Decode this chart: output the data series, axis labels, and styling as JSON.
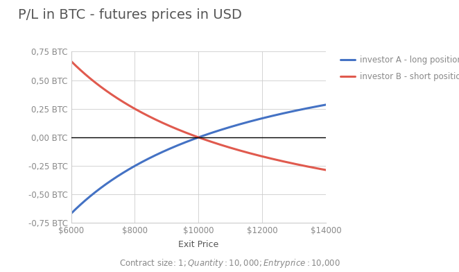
{
  "title": "P/L in BTC - futures prices in USD",
  "subtitle": "Contract size: $1; Quantity: 10,000; Entry price: $10,000",
  "xlabel": "Exit Price",
  "entry_price": 10000,
  "contract_size": 1,
  "quantity": 10000,
  "x_min": 6000,
  "x_max": 14000,
  "y_min": -0.75,
  "y_max": 0.75,
  "x_ticks": [
    6000,
    8000,
    10000,
    12000,
    14000
  ],
  "y_ticks": [
    -0.75,
    -0.5,
    -0.25,
    0.0,
    0.25,
    0.5,
    0.75
  ],
  "y_tick_labels": [
    "-0,75 BTC",
    "-0,50 BTC",
    "-0,25 BTC",
    "0,00 BTC",
    "0,25 BTC",
    "0,50 BTC",
    "0,75 BTC"
  ],
  "x_tick_labels": [
    "$6000",
    "$8000",
    "$10000",
    "$12000",
    "$14000"
  ],
  "line_long_color": "#4472C4",
  "line_short_color": "#E05A4E",
  "line_width": 2.2,
  "legend_long": "investor A - long position",
  "legend_short": "investor B - short position",
  "background_color": "#FFFFFF",
  "grid_color": "#CCCCCC",
  "title_fontsize": 14,
  "label_fontsize": 9,
  "tick_fontsize": 8.5,
  "subtitle_fontsize": 8.5,
  "title_color": "#555555",
  "tick_color": "#888888",
  "label_color": "#555555",
  "subtitle_color": "#888888",
  "legend_color": "#888888"
}
